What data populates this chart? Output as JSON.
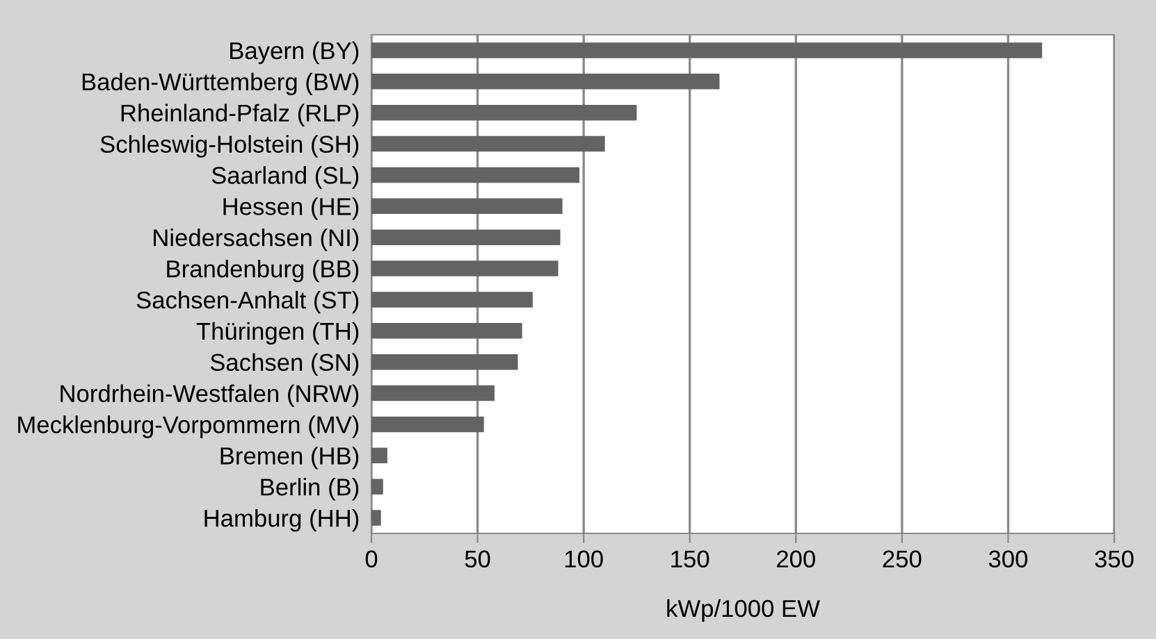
{
  "chart_data": {
    "type": "bar",
    "orientation": "horizontal",
    "xlabel": "kWp/1000 EW",
    "categories": [
      "Bayern (BY)",
      "Baden-Württemberg (BW)",
      "Rheinland-Pfalz (RLP)",
      "Schleswig-Holstein (SH)",
      "Saarland (SL)",
      "Hessen (HE)",
      "Niedersachsen (NI)",
      "Brandenburg (BB)",
      "Sachsen-Anhalt (ST)",
      "Thüringen (TH)",
      "Sachsen (SN)",
      "Nordrhein-Westfalen (NRW)",
      "Mecklenburg-Vorpommern (MV)",
      "Bremen (HB)",
      "Berlin (B)",
      "Hamburg (HH)"
    ],
    "values": [
      316,
      164,
      125,
      110,
      98,
      90,
      89,
      88,
      76,
      71,
      69,
      58,
      53,
      7.5,
      5.5,
      4.5
    ],
    "color": "#636363",
    "xlim": [
      0,
      350
    ],
    "xticks": [
      0,
      50,
      100,
      150,
      200,
      250,
      300,
      350
    ],
    "grid": "x"
  }
}
